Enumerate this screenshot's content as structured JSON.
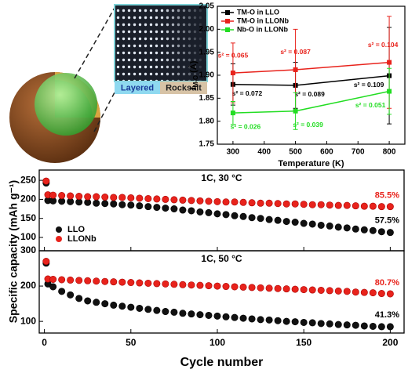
{
  "illustration": {
    "labels": [
      "Layered",
      "Rocksalt"
    ]
  },
  "chart_data": [
    {
      "type": "line",
      "xlabel": "Temperature (K)",
      "ylabel": {
        "symbol": "l",
        "subscript": "M-O",
        "unit": "(Å)"
      },
      "x": [
        300,
        500,
        800
      ],
      "xlim": [
        250,
        850
      ],
      "xticks": [
        300,
        400,
        500,
        600,
        700,
        800
      ],
      "ylim": [
        1.75,
        2.05
      ],
      "yticks": [
        1.75,
        {
          "value": 1.8,
          "label": "1.80"
        },
        1.85,
        {
          "value": 1.9,
          "label": "1.90"
        },
        1.95,
        {
          "value": 2.0,
          "label": "2.00"
        },
        2.05
      ],
      "legend": "upper left",
      "series": [
        {
          "name": "TM-O in LLO",
          "color": "#000000",
          "values": [
            1.88,
            1.878,
            1.899
          ],
          "errors": [
            0.045,
            0.05,
            0.105
          ],
          "annotations": [
            "s² = 0.072",
            "s² = 0.089",
            "s² = 0.109"
          ]
        },
        {
          "name": "TM-O in LLONb",
          "color": "#e8231c",
          "values": [
            1.905,
            1.912,
            1.928
          ],
          "errors": [
            0.065,
            0.088,
            0.1
          ],
          "annotations": [
            "s² = 0.065",
            "s² = 0.087",
            "s² = 0.104"
          ]
        },
        {
          "name": "Nb-O in LLONb",
          "color": "#22dd22",
          "values": [
            1.818,
            1.822,
            1.865
          ],
          "errors": [
            0.025,
            0.04,
            0.05
          ],
          "annotations": [
            "s² = 0.026",
            "s² = 0.039",
            "s² = 0.051"
          ]
        }
      ]
    },
    {
      "type": "scatter",
      "ylabel": "Specific capacity (mAh g⁻¹)",
      "annotations": [
        "1C, 30 °C",
        "85.5%",
        "57.5%"
      ],
      "xlim": [
        -3,
        208
      ],
      "ylim": [
        65,
        277
      ],
      "yticks": [
        100,
        150,
        200,
        250
      ],
      "legend": "lower left",
      "x": [
        1,
        2,
        5,
        10,
        15,
        20,
        25,
        30,
        35,
        40,
        45,
        50,
        55,
        60,
        65,
        70,
        75,
        80,
        85,
        90,
        95,
        100,
        105,
        110,
        115,
        120,
        125,
        130,
        135,
        140,
        145,
        150,
        155,
        160,
        165,
        170,
        175,
        180,
        185,
        190,
        195,
        200
      ],
      "series": [
        {
          "name": "LLO",
          "color": "#111111",
          "values": [
            243,
            197,
            196,
            195,
            194,
            193,
            192,
            190,
            189,
            188,
            186,
            185,
            183,
            181,
            179,
            177,
            175,
            172,
            170,
            167,
            165,
            162,
            160,
            157,
            155,
            152,
            150,
            147,
            145,
            142,
            140,
            137,
            135,
            132,
            130,
            127,
            125,
            122,
            120,
            118,
            115,
            113
          ]
        },
        {
          "name": "LLONb",
          "color": "#e8231c",
          "values": [
            248,
            212,
            211,
            210,
            209,
            208,
            207,
            207,
            206,
            205,
            205,
            204,
            203,
            202,
            201,
            200,
            199,
            198,
            197,
            196,
            195,
            194,
            193,
            193,
            192,
            191,
            190,
            190,
            189,
            188,
            188,
            187,
            186,
            186,
            185,
            184,
            184,
            183,
            182,
            182,
            181,
            181
          ]
        }
      ]
    },
    {
      "type": "scatter",
      "xlabel": "Cycle number",
      "annotations": [
        "1C, 50 °C",
        "80.7%",
        "41.3%"
      ],
      "xlim": [
        -3,
        208
      ],
      "xticks": [
        0,
        50,
        100,
        150,
        200
      ],
      "ylim": [
        67,
        300
      ],
      "yticks": [
        100,
        200,
        300
      ],
      "x": [
        1,
        2,
        5,
        10,
        15,
        20,
        25,
        30,
        35,
        40,
        45,
        50,
        55,
        60,
        65,
        70,
        75,
        80,
        85,
        90,
        95,
        100,
        105,
        110,
        115,
        120,
        125,
        130,
        135,
        140,
        145,
        150,
        155,
        160,
        165,
        170,
        175,
        180,
        185,
        190,
        195,
        200
      ],
      "series": [
        {
          "color": "#111111",
          "values": [
            265,
            206,
            198,
            185,
            175,
            165,
            158,
            154,
            150,
            146,
            143,
            140,
            137,
            134,
            131,
            128,
            126,
            123,
            121,
            119,
            117,
            115,
            113,
            111,
            109,
            107,
            105,
            104,
            102,
            100,
            99,
            97,
            96,
            94,
            93,
            91,
            90,
            89,
            87,
            86,
            85,
            85
          ]
        },
        {
          "color": "#e8231c",
          "values": [
            270,
            220,
            219,
            218,
            217,
            216,
            215,
            214,
            213,
            212,
            211,
            210,
            209,
            208,
            207,
            206,
            205,
            204,
            203,
            202,
            201,
            200,
            199,
            198,
            197,
            196,
            195,
            194,
            193,
            192,
            191,
            190,
            189,
            188,
            187,
            186,
            185,
            183,
            182,
            181,
            179,
            178
          ]
        }
      ]
    }
  ]
}
